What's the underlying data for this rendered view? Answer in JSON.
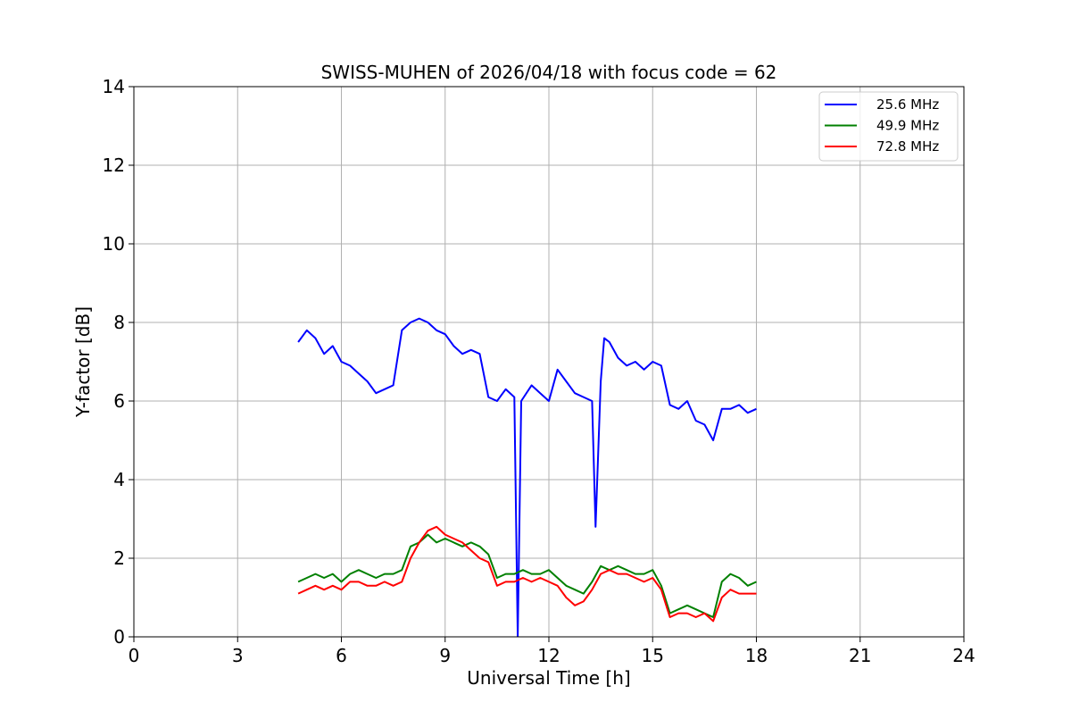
{
  "chart_data": {
    "type": "line",
    "title": "SWISS-MUHEN of 2026/04/18 with focus code = 62",
    "xlabel": "Universal Time [h]",
    "ylabel": "Y-factor [dB]",
    "xlim": [
      0,
      24
    ],
    "ylim": [
      0,
      14
    ],
    "xticks": [
      0,
      3,
      6,
      9,
      12,
      15,
      18,
      21,
      24
    ],
    "yticks": [
      0,
      2,
      4,
      6,
      8,
      10,
      12,
      14
    ],
    "grid": true,
    "legend_position": "top-right",
    "series": [
      {
        "name": "25.6 MHz",
        "color": "#0000ff",
        "x": [
          4.75,
          5.0,
          5.25,
          5.5,
          5.75,
          6.0,
          6.25,
          6.5,
          6.75,
          7.0,
          7.25,
          7.5,
          7.75,
          8.0,
          8.25,
          8.5,
          8.75,
          9.0,
          9.25,
          9.5,
          9.75,
          10.0,
          10.25,
          10.5,
          10.75,
          11.0,
          11.1,
          11.2,
          11.5,
          11.75,
          12.0,
          12.25,
          12.5,
          12.75,
          13.0,
          13.25,
          13.35,
          13.5,
          13.6,
          13.75,
          14.0,
          14.25,
          14.5,
          14.75,
          15.0,
          15.25,
          15.5,
          15.75,
          16.0,
          16.25,
          16.5,
          16.75,
          17.0,
          17.25,
          17.5,
          17.75,
          18.0
        ],
        "y": [
          7.5,
          7.8,
          7.6,
          7.2,
          7.4,
          7.0,
          6.9,
          6.7,
          6.5,
          6.2,
          6.3,
          6.4,
          7.8,
          8.0,
          8.1,
          8.0,
          7.8,
          7.7,
          7.4,
          7.2,
          7.3,
          7.2,
          6.1,
          6.0,
          6.3,
          6.1,
          0.0,
          6.0,
          6.4,
          6.2,
          6.0,
          6.8,
          6.5,
          6.2,
          6.1,
          6.0,
          2.8,
          6.5,
          7.6,
          7.5,
          7.1,
          6.9,
          7.0,
          6.8,
          7.0,
          6.9,
          5.9,
          5.8,
          6.0,
          5.5,
          5.4,
          5.0,
          5.8,
          5.8,
          5.9,
          5.7,
          5.8
        ]
      },
      {
        "name": "49.9 MHz",
        "color": "#008000",
        "x": [
          4.75,
          5.0,
          5.25,
          5.5,
          5.75,
          6.0,
          6.25,
          6.5,
          6.75,
          7.0,
          7.25,
          7.5,
          7.75,
          8.0,
          8.25,
          8.5,
          8.75,
          9.0,
          9.25,
          9.5,
          9.75,
          10.0,
          10.25,
          10.5,
          10.75,
          11.0,
          11.25,
          11.5,
          11.75,
          12.0,
          12.25,
          12.5,
          12.75,
          13.0,
          13.25,
          13.5,
          13.75,
          14.0,
          14.25,
          14.5,
          14.75,
          15.0,
          15.25,
          15.5,
          15.75,
          16.0,
          16.25,
          16.5,
          16.75,
          17.0,
          17.25,
          17.5,
          17.75,
          18.0
        ],
        "y": [
          1.4,
          1.5,
          1.6,
          1.5,
          1.6,
          1.4,
          1.6,
          1.7,
          1.6,
          1.5,
          1.6,
          1.6,
          1.7,
          2.3,
          2.4,
          2.6,
          2.4,
          2.5,
          2.4,
          2.3,
          2.4,
          2.3,
          2.1,
          1.5,
          1.6,
          1.6,
          1.7,
          1.6,
          1.6,
          1.7,
          1.5,
          1.3,
          1.2,
          1.1,
          1.4,
          1.8,
          1.7,
          1.8,
          1.7,
          1.6,
          1.6,
          1.7,
          1.3,
          0.6,
          0.7,
          0.8,
          0.7,
          0.6,
          0.5,
          1.4,
          1.6,
          1.5,
          1.3,
          1.4
        ]
      },
      {
        "name": "72.8 MHz",
        "color": "#ff0000",
        "x": [
          4.75,
          5.0,
          5.25,
          5.5,
          5.75,
          6.0,
          6.25,
          6.5,
          6.75,
          7.0,
          7.25,
          7.5,
          7.75,
          8.0,
          8.25,
          8.5,
          8.75,
          9.0,
          9.25,
          9.5,
          9.75,
          10.0,
          10.25,
          10.5,
          10.75,
          11.0,
          11.25,
          11.5,
          11.75,
          12.0,
          12.25,
          12.5,
          12.75,
          13.0,
          13.25,
          13.5,
          13.75,
          14.0,
          14.25,
          14.5,
          14.75,
          15.0,
          15.25,
          15.5,
          15.75,
          16.0,
          16.25,
          16.5,
          16.75,
          17.0,
          17.25,
          17.5,
          17.75,
          18.0
        ],
        "y": [
          1.1,
          1.2,
          1.3,
          1.2,
          1.3,
          1.2,
          1.4,
          1.4,
          1.3,
          1.3,
          1.4,
          1.3,
          1.4,
          2.0,
          2.4,
          2.7,
          2.8,
          2.6,
          2.5,
          2.4,
          2.2,
          2.0,
          1.9,
          1.3,
          1.4,
          1.4,
          1.5,
          1.4,
          1.5,
          1.4,
          1.3,
          1.0,
          0.8,
          0.9,
          1.2,
          1.6,
          1.7,
          1.6,
          1.6,
          1.5,
          1.4,
          1.5,
          1.2,
          0.5,
          0.6,
          0.6,
          0.5,
          0.6,
          0.4,
          1.0,
          1.2,
          1.1,
          1.1,
          1.1
        ]
      }
    ]
  }
}
